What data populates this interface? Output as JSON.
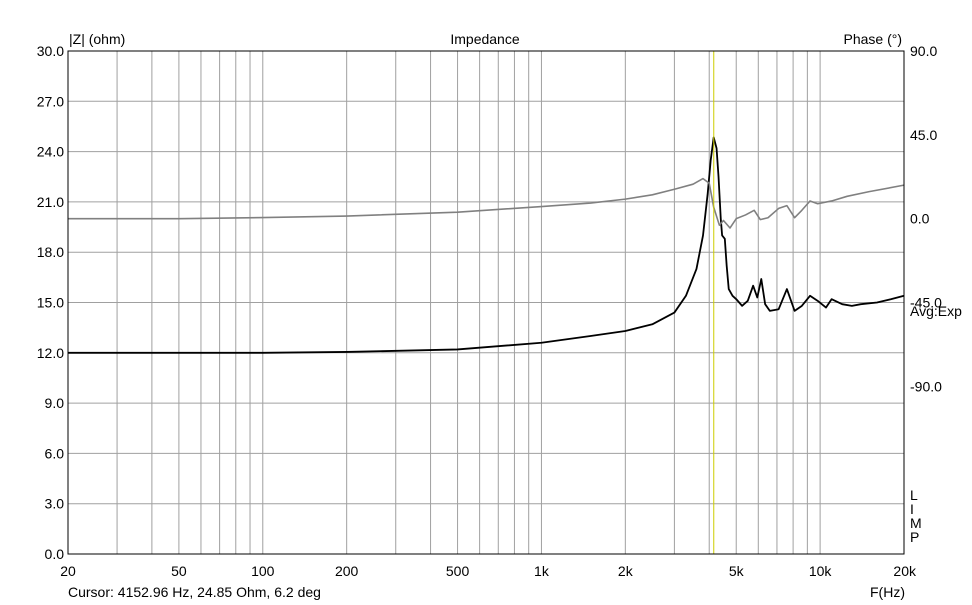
{
  "chart_data": {
    "type": "line",
    "title": "Impedance",
    "ylabel": "|Z| (ohm)",
    "y2label": "Phase (°)",
    "xlabel": "F(Hz)",
    "x_scale": "log",
    "xlim": [
      20,
      20000
    ],
    "ylim": [
      0,
      30
    ],
    "y2lim": [
      -180,
      90
    ],
    "x_ticks": [
      20,
      50,
      100,
      200,
      500,
      1000,
      2000,
      5000,
      10000,
      20000
    ],
    "x_tick_labels": [
      "20",
      "50",
      "100",
      "200",
      "500",
      "1k",
      "2k",
      "5k",
      "10k",
      "20k"
    ],
    "y_ticks": [
      0,
      3,
      6,
      9,
      12,
      15,
      18,
      21,
      24,
      27,
      30
    ],
    "y_tick_labels": [
      "0.0",
      "3.0",
      "6.0",
      "9.0",
      "12.0",
      "15.0",
      "18.0",
      "21.0",
      "24.0",
      "27.0",
      "30.0"
    ],
    "y2_ticks": [
      90,
      45,
      0,
      -45,
      -90
    ],
    "y2_tick_labels": [
      "90.0",
      "45.0",
      "0.0",
      "-45.0",
      "-90.0"
    ],
    "grid": true,
    "avg_label": "Avg:Exp",
    "side_label": "LIMP",
    "cursor": {
      "x": 4152.96,
      "text": "Cursor: 4152.96 Hz, 24.85 Ohm, 6.2 deg",
      "color": "#cccc00"
    },
    "series": [
      {
        "name": "|Z|",
        "axis": "left",
        "color": "#000000",
        "points": [
          [
            20,
            12.0
          ],
          [
            50,
            12.0
          ],
          [
            100,
            12.0
          ],
          [
            200,
            12.05
          ],
          [
            500,
            12.2
          ],
          [
            1000,
            12.6
          ],
          [
            1500,
            13.0
          ],
          [
            2000,
            13.3
          ],
          [
            2500,
            13.7
          ],
          [
            3000,
            14.4
          ],
          [
            3300,
            15.4
          ],
          [
            3600,
            17.0
          ],
          [
            3800,
            19.0
          ],
          [
            3950,
            21.5
          ],
          [
            4050,
            23.5
          ],
          [
            4150,
            24.85
          ],
          [
            4250,
            24.2
          ],
          [
            4320,
            22.5
          ],
          [
            4400,
            20.0
          ],
          [
            4450,
            19.0
          ],
          [
            4550,
            18.8
          ],
          [
            4620,
            17.2
          ],
          [
            4700,
            15.8
          ],
          [
            4850,
            15.4
          ],
          [
            5000,
            15.2
          ],
          [
            5250,
            14.8
          ],
          [
            5500,
            15.1
          ],
          [
            5750,
            16.0
          ],
          [
            5950,
            15.3
          ],
          [
            6150,
            16.4
          ],
          [
            6350,
            14.9
          ],
          [
            6600,
            14.5
          ],
          [
            7100,
            14.6
          ],
          [
            7600,
            15.8
          ],
          [
            8100,
            14.5
          ],
          [
            8600,
            14.8
          ],
          [
            9200,
            15.4
          ],
          [
            9800,
            15.1
          ],
          [
            10500,
            14.7
          ],
          [
            11000,
            15.2
          ],
          [
            12000,
            14.9
          ],
          [
            13000,
            14.8
          ],
          [
            14000,
            14.9
          ],
          [
            16000,
            15.0
          ],
          [
            18000,
            15.2
          ],
          [
            20000,
            15.4
          ]
        ]
      },
      {
        "name": "Phase",
        "axis": "right",
        "color": "#808080",
        "points": [
          [
            20,
            0
          ],
          [
            50,
            0
          ],
          [
            100,
            0.6
          ],
          [
            200,
            1.4
          ],
          [
            500,
            3.5
          ],
          [
            1000,
            6.5
          ],
          [
            1500,
            8.4
          ],
          [
            2000,
            10.5
          ],
          [
            2500,
            12.8
          ],
          [
            3000,
            15.8
          ],
          [
            3500,
            18.5
          ],
          [
            3800,
            21.5
          ],
          [
            4000,
            19.0
          ],
          [
            4150,
            6.2
          ],
          [
            4350,
            -3.5
          ],
          [
            4500,
            -1.0
          ],
          [
            4750,
            -5.0
          ],
          [
            5000,
            0
          ],
          [
            5400,
            2.0
          ],
          [
            5800,
            4.5
          ],
          [
            6100,
            -0.5
          ],
          [
            6500,
            0.5
          ],
          [
            7100,
            5.5
          ],
          [
            7600,
            7.0
          ],
          [
            8100,
            0.5
          ],
          [
            8600,
            4.5
          ],
          [
            9200,
            9.5
          ],
          [
            9800,
            8.0
          ],
          [
            11000,
            9.5
          ],
          [
            12500,
            12.0
          ],
          [
            15000,
            14.5
          ],
          [
            20000,
            18.0
          ]
        ]
      }
    ]
  }
}
